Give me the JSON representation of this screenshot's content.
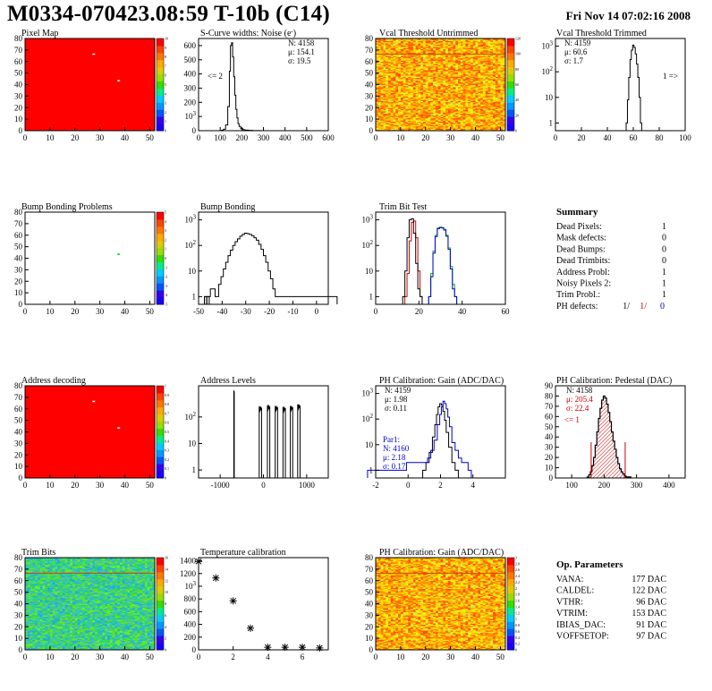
{
  "header": {
    "title": "M0334-070423.08:59 T-10b (C14)",
    "date": "Fri Nov 14 07:02:16 2008"
  },
  "colors": {
    "frame": "#000000",
    "map_fill": "#ff0000",
    "trim_curve_red": "#cc0000",
    "trim_curve_green": "#00b000",
    "trim_curve_blue": "#0000cc",
    "pedestal_hatch": "#cc0000"
  },
  "chart_data": [
    {
      "id": "pixel_map",
      "type": "heatmap",
      "title": "Pixel Map",
      "xlim": [
        0,
        52
      ],
      "ylim": [
        0,
        80
      ],
      "xticks": [
        "0",
        "10",
        "20",
        "30",
        "40",
        "50"
      ],
      "yticks": [
        "0",
        "10",
        "20",
        "30",
        "40",
        "50",
        "60",
        "70",
        "80"
      ],
      "palette_scale": "uniform",
      "z_max": 10,
      "z_ticks": [
        "0",
        "1",
        "2",
        "3",
        "4",
        "5",
        "6",
        "7",
        "8",
        "9",
        "10"
      ],
      "marked_pixels": [
        {
          "x": 27,
          "y": 67
        },
        {
          "x": 37,
          "y": 44
        }
      ]
    },
    {
      "id": "scurve",
      "type": "histogram",
      "title": "S-Curve widths: Noise (e",
      "title_sup": "-",
      "title_end": ")",
      "xlim": [
        0,
        600
      ],
      "ylim": [
        0,
        650
      ],
      "xticks": [
        "0",
        "100",
        "200",
        "300",
        "400",
        "500",
        "600"
      ],
      "yticks": [
        "0",
        "100",
        "200",
        "300",
        "400",
        "500",
        "600"
      ],
      "bin_centers": [
        110,
        120,
        130,
        140,
        145,
        150,
        155,
        160,
        165,
        170,
        175,
        180,
        185,
        190,
        200,
        210,
        220,
        240,
        260,
        280
      ],
      "counts": [
        3,
        10,
        40,
        170,
        420,
        600,
        620,
        520,
        380,
        250,
        150,
        90,
        50,
        30,
        14,
        7,
        4,
        2,
        1,
        1
      ],
      "stats": [
        "N: 4158",
        "μ: 154.1",
        "σ: 19.5"
      ],
      "annotation": "<= 2"
    },
    {
      "id": "vcal_untrimmed",
      "type": "heatmap",
      "title": "Vcal Threshold Untrimmed",
      "xlim": [
        0,
        52
      ],
      "ylim": [
        0,
        80
      ],
      "xticks": [
        "0",
        "10",
        "20",
        "30",
        "40",
        "50"
      ],
      "yticks": [
        "0",
        "10",
        "20",
        "30",
        "40",
        "50",
        "60",
        "70",
        "80"
      ],
      "palette_scale": "noisy_yellow_orange",
      "z_max": 120,
      "z_ticks": [
        "0",
        "20",
        "40",
        "60",
        "80",
        "100",
        "120"
      ],
      "highlight_row": 66
    },
    {
      "id": "vcal_trimmed",
      "type": "histogram",
      "title": "Vcal Threshold Trimmed",
      "log_y": true,
      "xlim": [
        0,
        100
      ],
      "ylim": [
        0.5,
        2000
      ],
      "xticks": [
        "0",
        "20",
        "40",
        "60",
        "80",
        "100"
      ],
      "yticks": [
        "1",
        "10",
        "10²",
        "10³"
      ],
      "bin_centers": [
        55,
        56,
        57,
        58,
        59,
        60,
        61,
        62,
        63,
        64,
        65,
        66
      ],
      "counts": [
        1,
        8,
        60,
        300,
        700,
        1100,
        900,
        500,
        200,
        60,
        10,
        1
      ],
      "stats": [
        "N: 4159",
        "μ: 60.6",
        "σ:  1.7"
      ],
      "annotation": "1 =>"
    },
    {
      "id": "bump_map",
      "type": "heatmap",
      "title": "Bump Bonding Problems",
      "xlim": [
        0,
        52
      ],
      "ylim": [
        0,
        80
      ],
      "xticks": [
        "0",
        "10",
        "20",
        "30",
        "40",
        "50"
      ],
      "yticks": [
        "0",
        "10",
        "20",
        "30",
        "40",
        "50",
        "60",
        "70",
        "80"
      ],
      "palette_scale": "empty",
      "z_max": 5,
      "z_ticks": [
        "-5",
        "-4",
        "-3",
        "-2",
        "-1",
        "0",
        "1",
        "2",
        "3",
        "4",
        "5"
      ],
      "marked_pixels": [
        {
          "x": 37,
          "y": 44
        }
      ]
    },
    {
      "id": "bump_bonding",
      "type": "histogram",
      "title": "Bump Bonding",
      "log_y": true,
      "xlim": [
        -50,
        5
      ],
      "ylim": [
        0.5,
        2000
      ],
      "xticks": [
        "-50",
        "-40",
        "-30",
        "-20",
        "-10",
        "0"
      ],
      "yticks": [
        "1",
        "10",
        "10²",
        "10³"
      ],
      "bin_centers": [
        -47,
        -46,
        -44,
        -42,
        -41,
        -40,
        -39,
        -38,
        -37,
        -36,
        -35,
        -34,
        -33,
        -32,
        -31,
        -30,
        -29,
        -28,
        -27,
        -26,
        -25,
        -24,
        -23,
        -22,
        -21,
        -20,
        -19,
        -18,
        -17,
        -16,
        0.5
      ],
      "counts": [
        1,
        1,
        2,
        1,
        3,
        6,
        12,
        22,
        40,
        65,
        100,
        140,
        180,
        230,
        270,
        300,
        290,
        270,
        240,
        200,
        160,
        110,
        70,
        40,
        22,
        10,
        5,
        2,
        1,
        1,
        1
      ]
    },
    {
      "id": "trim_bit_test",
      "type": "histogram",
      "title": "Trim Bit Test",
      "log_y": true,
      "xlim": [
        0,
        60
      ],
      "ylim": [
        0.5,
        2000
      ],
      "xticks": [
        "0",
        "20",
        "40",
        "60"
      ],
      "yticks": [
        "1",
        "10",
        "10²",
        "10³"
      ],
      "series": [
        {
          "color": "#cc0000",
          "bin_centers": [
            14,
            15,
            16,
            17,
            18,
            19,
            20,
            21
          ],
          "counts": [
            1,
            8,
            150,
            800,
            900,
            200,
            10,
            1
          ]
        },
        {
          "color": "#000000",
          "bin_centers": [
            13,
            14,
            15,
            16,
            17,
            18,
            19,
            20,
            21
          ],
          "counts": [
            1,
            10,
            200,
            1000,
            1100,
            300,
            20,
            2,
            1
          ]
        },
        {
          "color": "#00b000",
          "bin_centers": [
            25,
            26,
            27,
            28,
            29,
            30,
            31,
            32,
            33,
            34,
            35,
            36,
            37
          ],
          "counts": [
            1,
            8,
            60,
            250,
            480,
            520,
            500,
            420,
            250,
            80,
            15,
            3,
            1
          ]
        },
        {
          "color": "#0000cc",
          "bin_centers": [
            25,
            26,
            27,
            28,
            29,
            30,
            31,
            32,
            33,
            34,
            35,
            36,
            37
          ],
          "counts": [
            1,
            6,
            50,
            220,
            450,
            500,
            480,
            400,
            230,
            70,
            12,
            2,
            1
          ]
        }
      ]
    },
    {
      "id": "summary",
      "type": "table",
      "title": "Summary",
      "rows": [
        {
          "label": "Dead Pixels:",
          "value": "1"
        },
        {
          "label": "Mask defects:",
          "value": "0"
        },
        {
          "label": "Dead Bumps:",
          "value": "0"
        },
        {
          "label": "Dead Trimbits:",
          "value": "0"
        },
        {
          "label": "Address Probl:",
          "value": "1"
        },
        {
          "label": "Noisy Pixels 2:",
          "value": "1"
        },
        {
          "label": "Trim Probl.:",
          "value": "1"
        }
      ],
      "ph_defects": {
        "label": "PH defects:",
        "values": [
          "1/",
          "1/",
          "0"
        ],
        "colors": [
          "#000000",
          "#cc0000",
          "#0000cc"
        ]
      }
    },
    {
      "id": "address_map",
      "type": "heatmap",
      "title": "Address decoding",
      "xlim": [
        0,
        52
      ],
      "ylim": [
        0,
        80
      ],
      "xticks": [
        "0",
        "10",
        "20",
        "30",
        "40",
        "50"
      ],
      "yticks": [
        "0",
        "10",
        "20",
        "30",
        "40",
        "50",
        "60",
        "70",
        "80"
      ],
      "palette_scale": "uniform",
      "z_max": 1,
      "z_ticks": [
        "0",
        "0.1",
        "0.2",
        "0.3",
        "0.4",
        "0.5",
        "0.6",
        "0.7",
        "0.8",
        "0.9",
        "1"
      ],
      "marked_pixels": [
        {
          "x": 27,
          "y": 67
        },
        {
          "x": 37,
          "y": 44
        }
      ]
    },
    {
      "id": "address_levels",
      "type": "histogram",
      "title": "Address Levels",
      "log_y": true,
      "xlim": [
        -1500,
        1500
      ],
      "ylim": [
        0.5,
        1500
      ],
      "xticks": [
        "-1000",
        "0",
        "1000"
      ],
      "yticks": [
        "1",
        "10",
        "10²"
      ],
      "peaks": [
        {
          "center": -680,
          "height": 1000,
          "width": 10
        },
        {
          "center": -70,
          "height": 250,
          "width": 55
        },
        {
          "center": 120,
          "height": 280,
          "width": 55
        },
        {
          "center": 300,
          "height": 260,
          "width": 55
        },
        {
          "center": 480,
          "height": 240,
          "width": 55
        },
        {
          "center": 650,
          "height": 260,
          "width": 55
        },
        {
          "center": 820,
          "height": 300,
          "width": 55
        }
      ]
    },
    {
      "id": "ph_gain",
      "type": "histogram",
      "title": "PH Calibration: Gain (ADC/DAC)",
      "log_y": true,
      "xlim": [
        -2,
        6
      ],
      "ylim": [
        0.5,
        2000
      ],
      "xticks": [
        "-2",
        "0",
        "2",
        "4"
      ],
      "yticks": [
        "1",
        "10",
        "10²",
        "10³"
      ],
      "series": [
        {
          "color": "#000000",
          "bin_centers": [
            1.0,
            1.2,
            1.4,
            1.6,
            1.7,
            1.8,
            1.9,
            2.0,
            2.1,
            2.2,
            2.3,
            2.4,
            2.6,
            2.8,
            3.0
          ],
          "counts": [
            1,
            2,
            5,
            20,
            60,
            150,
            300,
            400,
            350,
            200,
            90,
            30,
            8,
            2,
            1
          ]
        },
        {
          "color": "#0000cc",
          "bin_centers": [
            -1.3,
            1.1,
            1.3,
            1.5,
            1.7,
            1.9,
            2.0,
            2.1,
            2.2,
            2.3,
            2.4,
            2.5,
            2.6,
            2.8,
            3.0,
            3.2,
            3.4,
            3.6,
            3.8
          ],
          "counts": [
            1,
            2,
            3,
            6,
            15,
            60,
            150,
            300,
            500,
            400,
            250,
            120,
            50,
            12,
            6,
            3,
            2,
            2,
            1
          ]
        }
      ],
      "stats": [
        "N: 4159",
        "μ: 1.98",
        "σ: 0.11"
      ],
      "stats2": [
        "Par1:",
        "N: 4160",
        "μ: 2.18",
        "σ: 0.17"
      ]
    },
    {
      "id": "ph_pedestal",
      "type": "histogram",
      "title": "PH Calibration: Pedestal (DAC)",
      "xlim": [
        50,
        450
      ],
      "ylim": [
        0,
        90
      ],
      "xticks": [
        "100",
        "200",
        "300",
        "400"
      ],
      "yticks": [
        "0",
        "10",
        "20",
        "30",
        "40",
        "50",
        "60",
        "70",
        "80",
        "90"
      ],
      "bin_centers": [
        150,
        155,
        160,
        165,
        170,
        175,
        180,
        185,
        190,
        195,
        200,
        205,
        210,
        215,
        220,
        225,
        230,
        235,
        240,
        245,
        250,
        255,
        260,
        265,
        270,
        275,
        280
      ],
      "counts": [
        1,
        3,
        6,
        12,
        20,
        32,
        45,
        58,
        68,
        76,
        80,
        78,
        72,
        64,
        55,
        45,
        36,
        28,
        20,
        14,
        9,
        6,
        4,
        2,
        1,
        1,
        1
      ],
      "stats": [
        "N: 4158"
      ],
      "stats_red": [
        "μ: 205.4",
        "σ: 22.4"
      ],
      "annotation": "<= 1",
      "cut_lines": [
        160,
        265
      ]
    },
    {
      "id": "trim_bits",
      "type": "heatmap",
      "title": "Trim Bits",
      "xlim": [
        0,
        52
      ],
      "ylim": [
        0,
        80
      ],
      "xticks": [
        "0",
        "10",
        "20",
        "30",
        "40",
        "50"
      ],
      "yticks": [
        "0",
        "10",
        "20",
        "30",
        "40",
        "50",
        "60",
        "70",
        "80"
      ],
      "palette_scale": "noisy_green_cyan",
      "z_max": 16,
      "z_ticks": [
        "0",
        "2",
        "4",
        "6",
        "8",
        "10",
        "12",
        "14",
        "16"
      ],
      "highlight_row": 66
    },
    {
      "id": "temp_cal",
      "type": "scatter",
      "title": "Temperature calibration",
      "xlim": [
        0,
        7.5
      ],
      "ylim": [
        0,
        1450
      ],
      "xticks": [
        "0",
        "2",
        "4",
        "6"
      ],
      "yticks": [
        "0",
        "200",
        "400",
        "600",
        "800",
        "1000",
        "1200",
        "1400"
      ],
      "x": [
        0,
        1,
        2,
        3,
        4,
        5,
        6,
        7
      ],
      "y": [
        1390,
        1130,
        770,
        340,
        40,
        40,
        40,
        30
      ]
    },
    {
      "id": "ph_gain_map",
      "type": "heatmap",
      "title": "PH Calibration: Gain (ADC/DAC)",
      "xlim": [
        0,
        52
      ],
      "ylim": [
        0,
        80
      ],
      "xticks": [
        "0",
        "10",
        "20",
        "30",
        "40",
        "50"
      ],
      "yticks": [
        "0",
        "10",
        "20",
        "30",
        "40",
        "50",
        "60",
        "70",
        "80"
      ],
      "palette_scale": "noisy_yellow_orange",
      "z_max": 3,
      "z_ticks": [
        "0",
        "0.2",
        "0.4",
        "0.6",
        "0.8",
        "1",
        "1.2",
        "1.4",
        "1.6",
        "1.8",
        "2",
        "2.2",
        "2.4",
        "2.6",
        "2.8",
        "3"
      ],
      "highlight_row": 66
    },
    {
      "id": "op_params",
      "type": "table",
      "title": "Op. Parameters",
      "rows": [
        {
          "label": "VANA:",
          "value": "177 DAC"
        },
        {
          "label": "CALDEL:",
          "value": "122 DAC"
        },
        {
          "label": "VTHR:",
          "value": "96 DAC"
        },
        {
          "label": "VTRIM:",
          "value": "153 DAC"
        },
        {
          "label": "IBIAS_DAC:",
          "value": "91 DAC"
        },
        {
          "label": "VOFFSETOP:",
          "value": "97 DAC"
        }
      ]
    }
  ]
}
